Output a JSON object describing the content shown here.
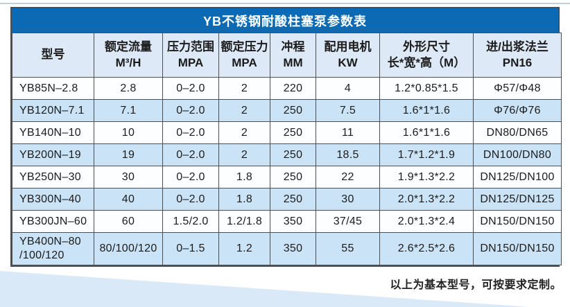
{
  "table": {
    "title": "YB不锈钢耐酸柱塞泵参数表",
    "columns": [
      {
        "id": "model",
        "line1": "型号",
        "line2": ""
      },
      {
        "id": "rated-flow",
        "line1": "额定流量",
        "line2": "M³/H"
      },
      {
        "id": "pressure-range",
        "line1": "压力范围",
        "line2": "MPA"
      },
      {
        "id": "rated-pressure",
        "line1": "额定压力",
        "line2": "MPA"
      },
      {
        "id": "stroke",
        "line1": "冲程",
        "line2": "MM"
      },
      {
        "id": "motor-power",
        "line1": "配用电机",
        "line2": "KW"
      },
      {
        "id": "dimensions",
        "line1": "外形尺寸",
        "line2": "长*宽*高（M）"
      },
      {
        "id": "flange",
        "line1": "进/出浆法兰",
        "line2": "PN16"
      }
    ],
    "rows": [
      {
        "cells": [
          "YB85N–2.8",
          "2.8",
          "0–2.0",
          "2",
          "220",
          "4",
          "1.2*0.85*1.5",
          "Φ57/Φ48"
        ]
      },
      {
        "cells": [
          "YB120N–7.1",
          "7.1",
          "0–2.0",
          "2",
          "250",
          "7.5",
          "1.6*1*1.6",
          "Φ76/Φ76"
        ]
      },
      {
        "cells": [
          "YB140N–10",
          "10",
          "0–2.0",
          "2",
          "250",
          "11",
          "1.6*1*1.6",
          "DN80/DN65"
        ]
      },
      {
        "cells": [
          "YB200N–19",
          "19",
          "0–2.0",
          "2",
          "250",
          "18.5",
          "1.7*1.2*1.9",
          "DN100/DN80"
        ]
      },
      {
        "cells": [
          "YB250N–30",
          "30",
          "0–2.0",
          "1.8",
          "250",
          "22",
          "1.9*1.3*2.2",
          "DN125/DN100"
        ]
      },
      {
        "cells": [
          "YB300N–40",
          "40",
          "0–2.0",
          "1.8",
          "250",
          "30",
          "2.0*1.3*2.2",
          "DN125/DN125"
        ]
      },
      {
        "cells": [
          "YB300JN–60",
          "60",
          "1.5/2.0",
          "1.2/1.8",
          "350",
          "37/45",
          "2.0*1.3*2.4",
          "DN150/DN150"
        ]
      },
      {
        "cells": [
          "YB400N–80\n/100/120",
          "80/100/120",
          "0–1.5",
          "1.2",
          "350",
          "55",
          "2.6*2.5*2.6",
          "DN150/DN150"
        ]
      }
    ],
    "footnote": "以上为基本型号，可按要求定制。"
  },
  "colors": {
    "title_bar_blue": "#0b6ab3",
    "header_row_bg": "#dde9f6",
    "alt_row_bg": "#cbe3f6",
    "grid_line": "#4e4e4e",
    "swoosh_blue": "#d9e9f8",
    "top_hairline": "#c3ced8"
  }
}
